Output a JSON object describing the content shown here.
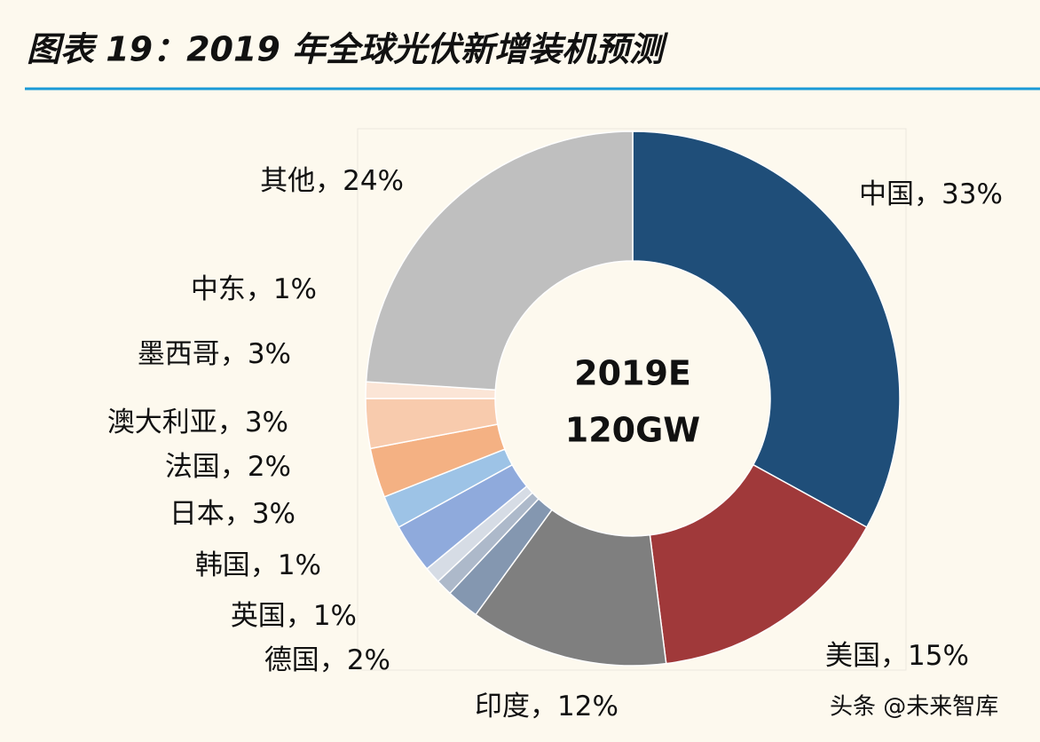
{
  "chart_data": {
    "type": "donut",
    "title": "图表 19：2019 年全球光伏新增装机预测",
    "center_label": [
      "2019E",
      "120GW"
    ],
    "categories": [
      "中国",
      "美国",
      "印度",
      "德国",
      "英国",
      "韩国",
      "日本",
      "法国",
      "澳大利亚",
      "墨西哥",
      "中东",
      "其他"
    ],
    "values": [
      33,
      15,
      12,
      2,
      1,
      1,
      3,
      2,
      3,
      3,
      1,
      24
    ],
    "value_labels": [
      "33%",
      "15%",
      "12%",
      "2%",
      "1%",
      "1%",
      "3%",
      "2%",
      "3%",
      "3%",
      "1%",
      "24%"
    ],
    "separator": "，",
    "colors": [
      "#1f4e79",
      "#a0393a",
      "#7f7f7f",
      "#8497b0",
      "#adb9ca",
      "#d6dce5",
      "#8faadc",
      "#9dc3e6",
      "#f4b183",
      "#f8cbad",
      "#fbe5d6",
      "#bfbfbf"
    ],
    "watermark": "头条 @未来智库"
  }
}
